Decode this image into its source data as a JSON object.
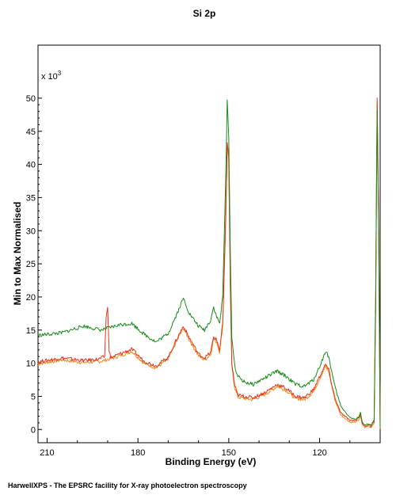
{
  "chart_data": {
    "type": "line",
    "title": "Si 2p",
    "xlabel": "Binding Energy (eV)",
    "ylabel": "Min to Max Normalised",
    "y_multiplier_label": "x 10",
    "y_multiplier_exp": "3",
    "xlim": [
      213,
      100
    ],
    "ylim": [
      -2,
      58
    ],
    "x_reversed": true,
    "x_ticks": [
      210,
      180,
      150,
      120
    ],
    "x_minor_step": 10,
    "y_ticks": [
      0,
      5,
      10,
      15,
      20,
      25,
      30,
      35,
      40,
      45,
      50
    ],
    "grid": false,
    "legend": "none",
    "series": [
      {
        "color": "#1a8a1a",
        "x": [
          213,
          205,
          198,
          192,
          186,
          182,
          178,
          174,
          170,
          167,
          165,
          163,
          160,
          158,
          156,
          155,
          154,
          153,
          152,
          151,
          150.5,
          150,
          149.5,
          149,
          148,
          147,
          145,
          142,
          138,
          134,
          131,
          128,
          125,
          122,
          120,
          118,
          117,
          115,
          113,
          110,
          108,
          107,
          106.5,
          106,
          105,
          104,
          103,
          102,
          101.5,
          101,
          100.5,
          100
        ],
        "y": [
          14.2,
          14.6,
          15.6,
          15.0,
          15.8,
          16.0,
          14.4,
          13.2,
          14.5,
          17.6,
          19.8,
          17.5,
          15.6,
          15.0,
          16.5,
          18.5,
          17.0,
          16.0,
          20.0,
          38.0,
          50.0,
          44.0,
          27.0,
          14.0,
          9.5,
          8.0,
          7.2,
          6.8,
          7.8,
          8.8,
          8.0,
          6.8,
          6.5,
          7.5,
          9.5,
          11.8,
          11.0,
          6.5,
          3.5,
          1.8,
          1.5,
          2.0,
          2.6,
          1.2,
          0.6,
          0.8,
          0.6,
          1.5,
          20.0,
          48.0,
          30.0,
          0.3
        ]
      },
      {
        "color": "#e8321e",
        "x": [
          213,
          205,
          198,
          193,
          191,
          190.5,
          190,
          189.5,
          189,
          186,
          182,
          178,
          174,
          170,
          167,
          165,
          163,
          160,
          158,
          156,
          155,
          154,
          153,
          152,
          151,
          150.5,
          150,
          149.5,
          149,
          148,
          147,
          145,
          142,
          138,
          134,
          131,
          128,
          125,
          122,
          120,
          118,
          117,
          115,
          113,
          110,
          108,
          107,
          106.5,
          106,
          105,
          104,
          103,
          102,
          101.5,
          101,
          100.5,
          100
        ],
        "y": [
          10.2,
          10.8,
          10.4,
          10.6,
          11.0,
          17.0,
          18.3,
          12.0,
          10.8,
          11.4,
          12.1,
          10.3,
          9.6,
          10.9,
          13.8,
          15.6,
          13.8,
          11.4,
          10.8,
          11.6,
          14.0,
          13.5,
          12.0,
          16.0,
          32.0,
          43.5,
          41.0,
          22.0,
          10.0,
          6.5,
          5.2,
          5.0,
          4.8,
          5.6,
          6.8,
          6.2,
          5.0,
          4.8,
          6.0,
          8.0,
          9.8,
          9.0,
          4.8,
          2.5,
          1.4,
          1.4,
          1.8,
          2.4,
          1.0,
          0.5,
          0.7,
          0.5,
          1.2,
          18.0,
          50.0,
          32.0,
          0.2
        ]
      },
      {
        "color": "#f08a1a",
        "x": [
          213,
          205,
          198,
          192,
          186,
          182,
          178,
          174,
          170,
          167,
          165,
          163,
          160,
          158,
          156,
          155,
          154,
          153,
          152,
          151,
          150.5,
          150,
          149.5,
          149,
          148,
          147,
          145,
          142,
          138,
          134,
          131,
          128,
          125,
          122,
          120,
          118,
          117,
          115,
          113,
          110,
          108,
          107,
          106.5,
          106,
          105,
          104,
          103,
          102,
          101.5,
          101,
          100.5,
          100
        ],
        "y": [
          9.9,
          10.5,
          10.1,
          10.3,
          11.1,
          11.8,
          10.0,
          9.3,
          10.6,
          13.5,
          15.3,
          13.5,
          11.1,
          10.5,
          11.3,
          13.7,
          13.2,
          11.7,
          15.7,
          31.5,
          43.0,
          40.5,
          21.5,
          9.7,
          6.2,
          4.9,
          4.7,
          4.5,
          5.3,
          6.5,
          5.9,
          4.7,
          4.5,
          5.7,
          7.7,
          9.5,
          8.7,
          4.5,
          2.2,
          1.1,
          1.1,
          1.5,
          2.1,
          0.8,
          0.3,
          0.5,
          0.3,
          1.0,
          17.5,
          49.5,
          31.5,
          0.1
        ]
      }
    ]
  },
  "footer": "HarwellXPS - The EPSRC facility for X-ray photoelectron spectroscopy"
}
